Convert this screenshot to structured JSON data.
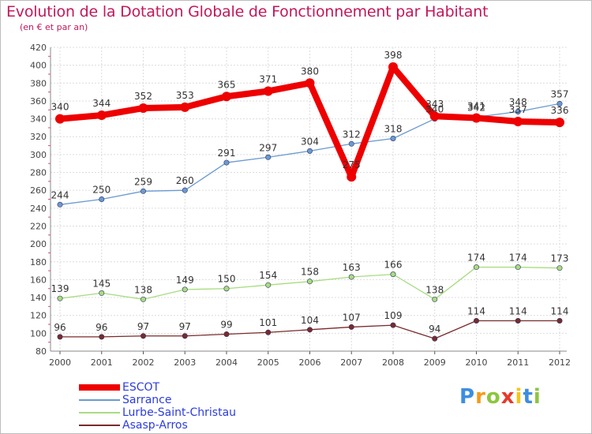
{
  "title": "Evolution de la Dotation Globale de Fonctionnement par Habitant",
  "subtitle": "(en € et par an)",
  "logo": {
    "chars": [
      "P",
      "r",
      "o",
      "x",
      "i",
      "t",
      "i"
    ],
    "colors": [
      "#3d8ee0",
      "#f59a1b",
      "#8cc63f",
      "#e63a2a",
      "#f5c518",
      "#3d8ee0",
      "#8cc63f"
    ]
  },
  "chart_data": {
    "type": "line",
    "x": [
      "2000",
      "2001",
      "2002",
      "2003",
      "2004",
      "2005",
      "2006",
      "2007",
      "2008",
      "2009",
      "2010",
      "2011",
      "2012"
    ],
    "ylim": [
      80,
      420
    ],
    "yticks": [
      80,
      100,
      120,
      140,
      160,
      180,
      200,
      220,
      240,
      260,
      280,
      300,
      320,
      340,
      360,
      380,
      400,
      420
    ],
    "grid": true,
    "legend_position": "bottom-left",
    "series": [
      {
        "name": "ESCOT",
        "color": "#ee0000",
        "values": [
          340,
          344,
          352,
          353,
          365,
          371,
          380,
          275,
          398,
          343,
          341,
          337,
          336
        ],
        "labels": [
          "340",
          "344",
          "352",
          "353",
          "365",
          "371",
          "380",
          "275",
          "398",
          "343",
          "341",
          "337",
          "336"
        ]
      },
      {
        "name": "Sarrance",
        "color": "#6a9ad0",
        "values": [
          244,
          250,
          259,
          260,
          291,
          297,
          304,
          312,
          318,
          340,
          342,
          348,
          357
        ],
        "labels": [
          "244",
          "250",
          "259",
          "260",
          "291",
          "297",
          "304",
          "312",
          "318",
          "340",
          "342",
          "348",
          "357"
        ]
      },
      {
        "name": "Lurbe-Saint-Christau",
        "color": "#a8dc80",
        "values": [
          139,
          145,
          138,
          149,
          150,
          154,
          158,
          163,
          166,
          138,
          174,
          174,
          173
        ],
        "labels": [
          "139",
          "145",
          "138",
          "149",
          "150",
          "154",
          "158",
          "163",
          "166",
          "138",
          "174",
          "174",
          "173"
        ]
      },
      {
        "name": "Asasp-Arros",
        "color": "#7a2a2a",
        "values": [
          96,
          96,
          97,
          97,
          99,
          101,
          104,
          107,
          109,
          94,
          114,
          114,
          114
        ],
        "labels": [
          "96",
          "96",
          "97",
          "97",
          "99",
          "101",
          "104",
          "107",
          "109",
          "94",
          "114",
          "114",
          "114"
        ]
      }
    ]
  }
}
